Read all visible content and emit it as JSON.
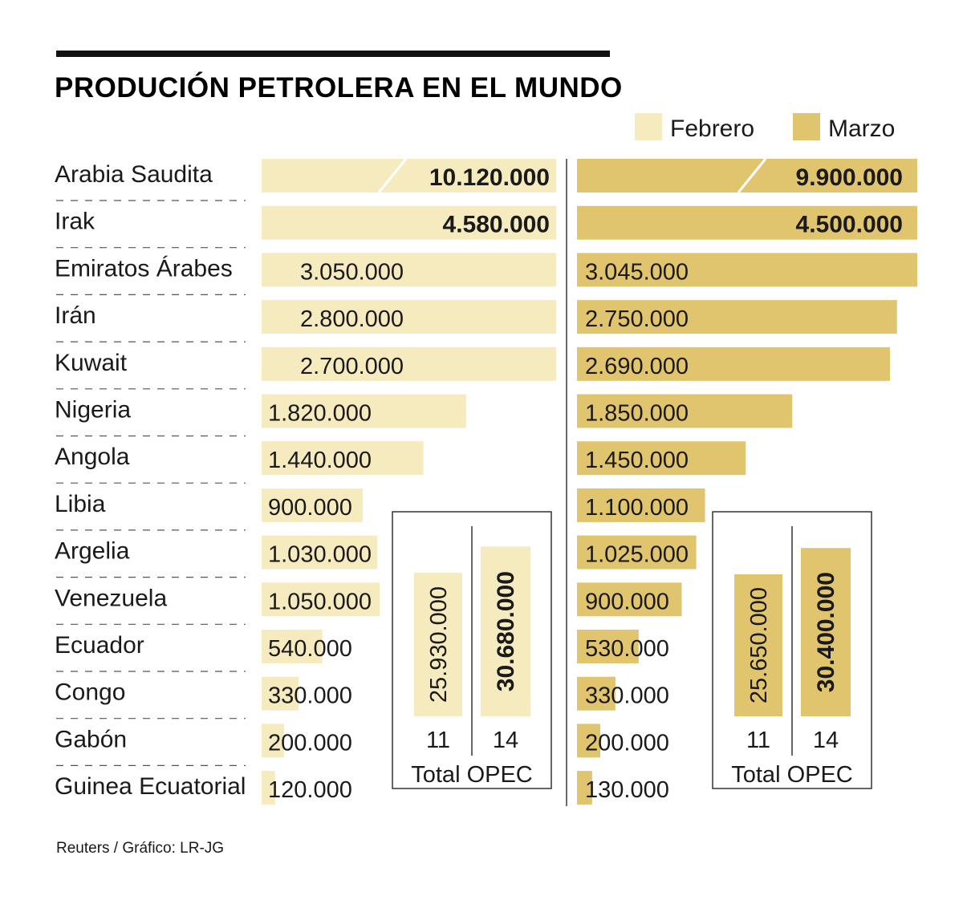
{
  "chart_data": {
    "type": "bar",
    "title": "PRODUCIÓN PETROLERA EN EL MUNDO",
    "categories": [
      "Arabia Saudita",
      "Irak",
      "Emiratos Árabes",
      "Irán",
      "Kuwait",
      "Nigeria",
      "Angola",
      "Libia",
      "Argelia",
      "Venezuela",
      "Ecuador",
      "Congo",
      "Gabón",
      "Guinea Ecuatorial"
    ],
    "series": [
      {
        "name": "Febrero",
        "color": "#f6eabf",
        "values": [
          10120000,
          4580000,
          3050000,
          2800000,
          2700000,
          1820000,
          1440000,
          900000,
          1030000,
          1050000,
          540000,
          330000,
          200000,
          120000
        ],
        "labels": [
          "10.120.000",
          "4.580.000",
          "3.050.000",
          "2.800.000",
          "2.700.000",
          "1.820.000",
          "1.440.000",
          "900.000",
          "1.030.000",
          "1.050.000",
          "540.000",
          "330.000",
          "200.000",
          "120.000"
        ]
      },
      {
        "name": "Marzo",
        "color": "#e0c46e",
        "values": [
          9900000,
          4500000,
          3045000,
          2750000,
          2690000,
          1850000,
          1450000,
          1100000,
          1025000,
          900000,
          530000,
          330000,
          200000,
          130000
        ],
        "labels": [
          "9.900.000",
          "4.500.000",
          "3.045.000",
          "2.750.000",
          "2.690.000",
          "1.850.000",
          "1.450.000",
          "1.100.000",
          "1.025.000",
          "900.000",
          "530.000",
          "330.000",
          "200.000",
          "130.000"
        ]
      }
    ],
    "totals": [
      {
        "series": "Febrero",
        "label": "Total OPEC",
        "bars": [
          {
            "count": "11",
            "value": 25930000,
            "text": "25.930.000"
          },
          {
            "count": "14",
            "value": 30680000,
            "text": "30.680.000"
          }
        ]
      },
      {
        "series": "Marzo",
        "label": "Total OPEC",
        "bars": [
          {
            "count": "11",
            "value": 25650000,
            "text": "25.650.000"
          },
          {
            "count": "14",
            "value": 30400000,
            "text": "30.400.000"
          }
        ]
      }
    ],
    "legend": [
      "Febrero",
      "Marzo"
    ],
    "legend_position": "top-right",
    "source": "Reuters / Gráfico: LR-JG"
  }
}
